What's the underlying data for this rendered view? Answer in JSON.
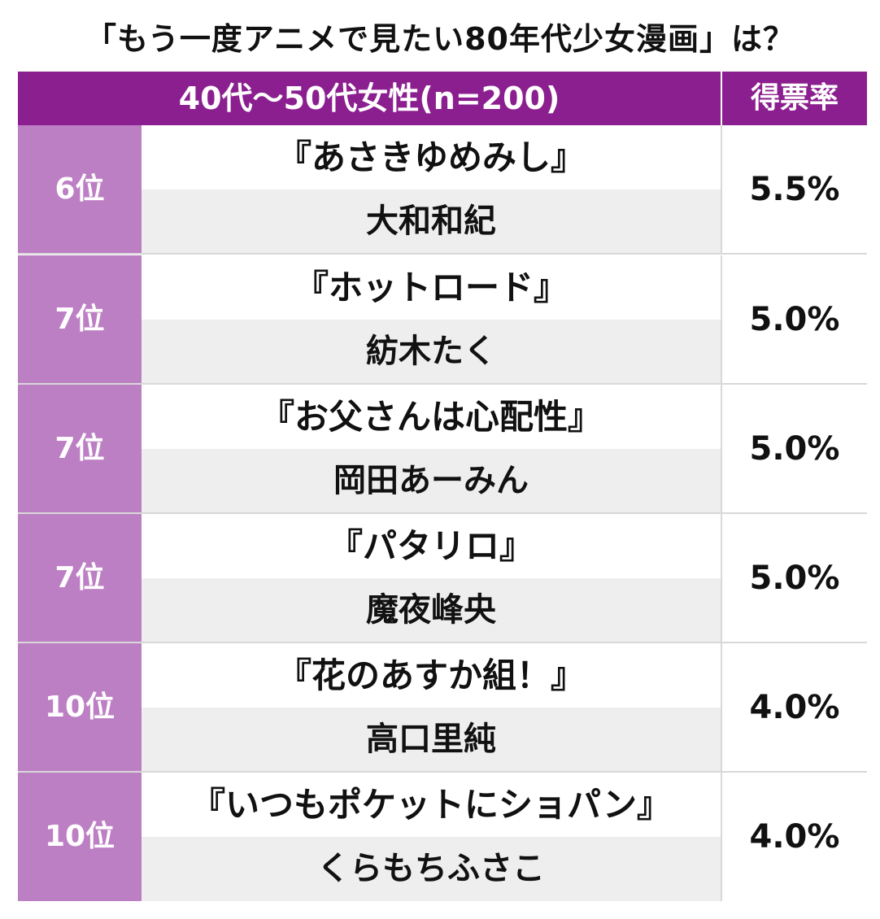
{
  "title": "「もう一度アニメで見たい80年代少女漫画」は？",
  "header": {
    "group_label": "40代〜50代女性(n=200)",
    "score_label": "得票率"
  },
  "colors": {
    "header_bg": "#8b1f8f",
    "rank_bg": "#bd7fc4",
    "author_bg": "#eeeeee"
  },
  "rows": [
    {
      "rank": "6位",
      "title": "『あさきゆめみし』",
      "author": "大和和紀",
      "score": "5.5%"
    },
    {
      "rank": "7位",
      "title": "『ホットロード』",
      "author": "紡木たく",
      "score": "5.0%"
    },
    {
      "rank": "7位",
      "title": "『お父さんは心配性』",
      "author": "岡田あーみん",
      "score": "5.0%"
    },
    {
      "rank": "7位",
      "title": "『パタリロ』",
      "author": "魔夜峰央",
      "score": "5.0%"
    },
    {
      "rank": "10位",
      "title": "『花のあすか組！』",
      "author": "高口里純",
      "score": "4.0%"
    },
    {
      "rank": "10位",
      "title": "『いつもポケットにショパン』",
      "author": "くらもちふさこ",
      "score": "4.0%"
    }
  ]
}
